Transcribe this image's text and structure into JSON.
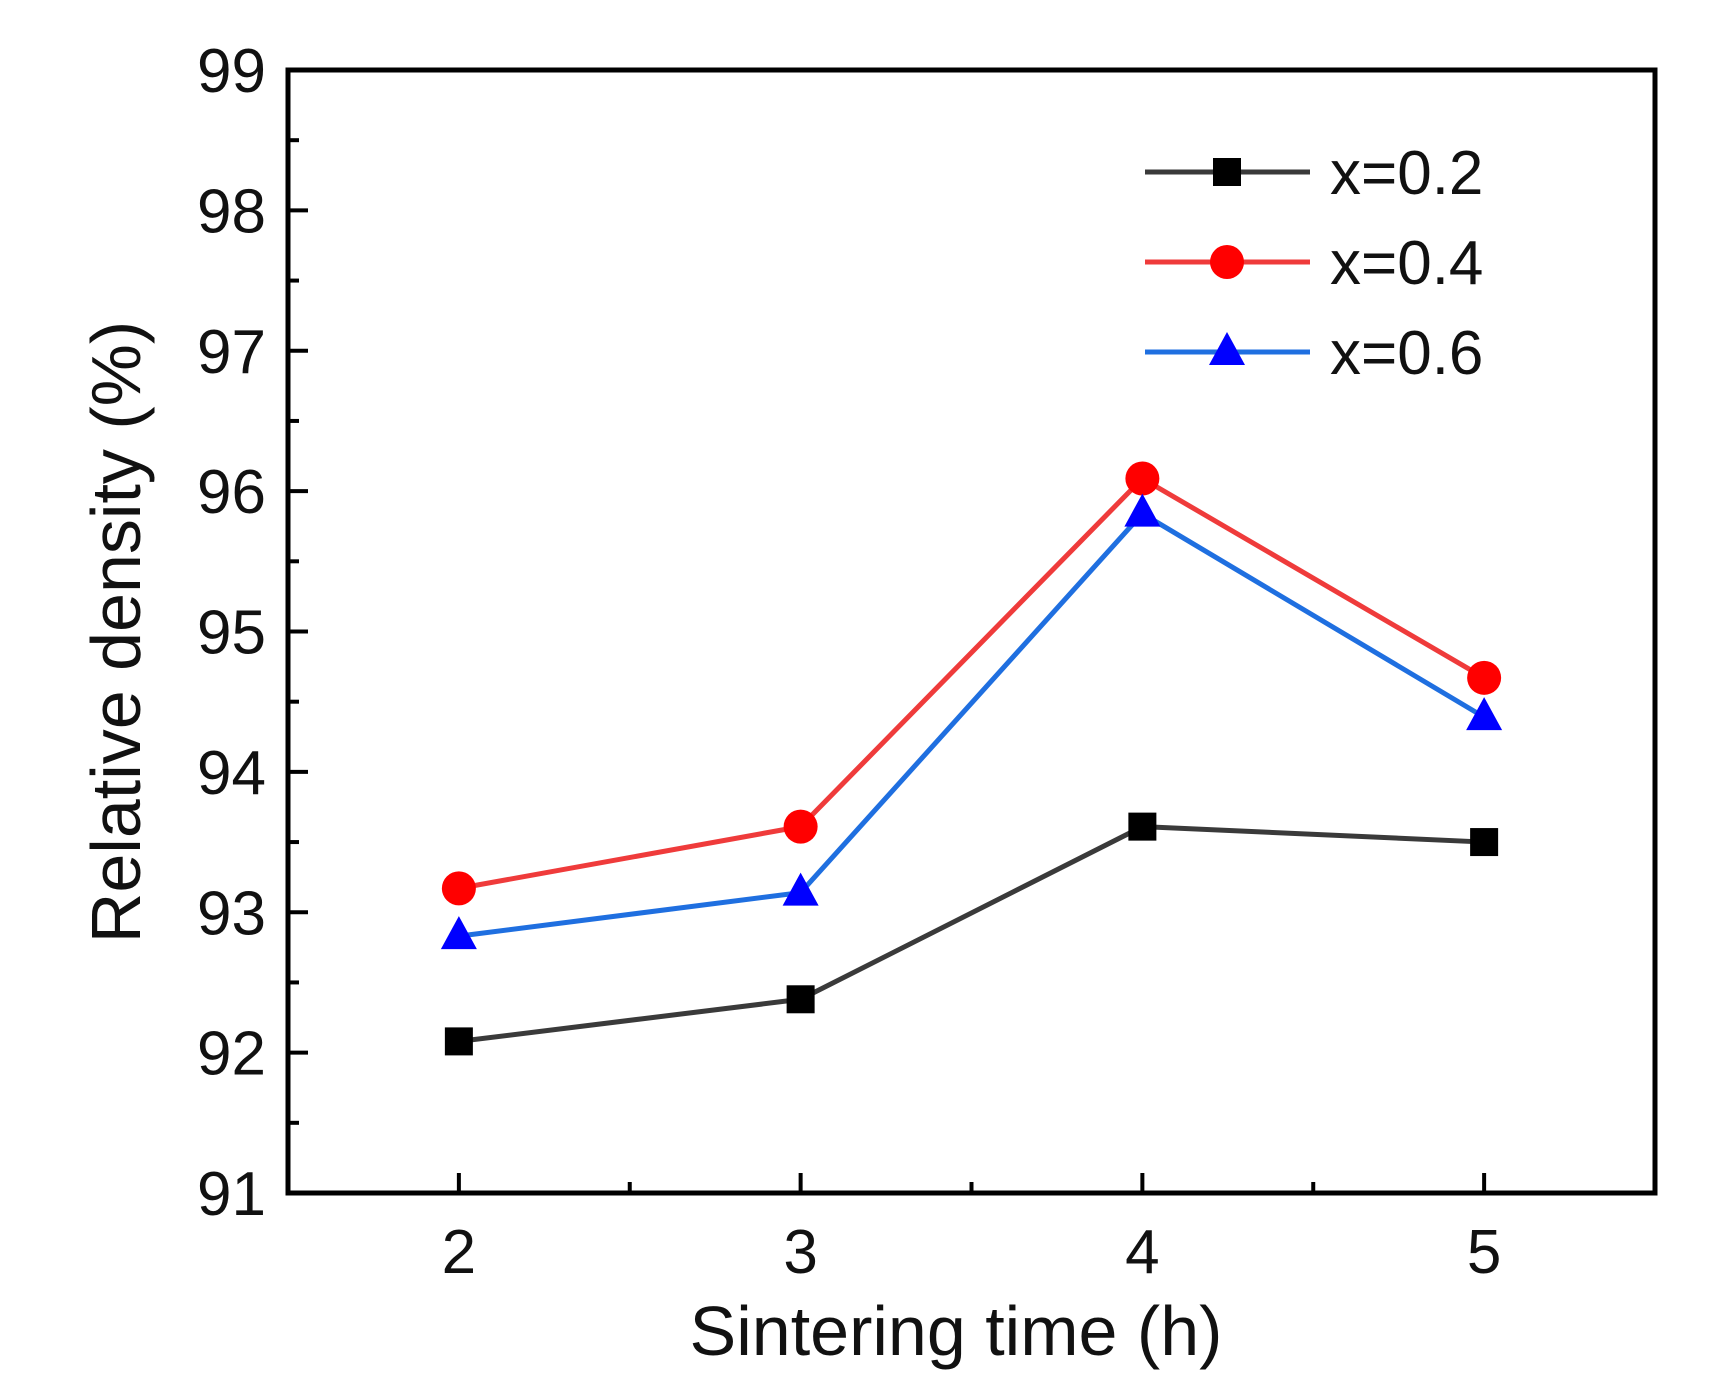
{
  "chart_data": {
    "type": "line",
    "title": "",
    "xlabel": "Sintering time (h)",
    "ylabel": "Relative density (%)",
    "x": [
      2,
      3,
      4,
      5
    ],
    "xlim": [
      1.5,
      5.5
    ],
    "ylim": [
      91,
      99
    ],
    "xticks": [
      2,
      3,
      4,
      5
    ],
    "xtick_labels": [
      "2",
      "3",
      "4",
      "5"
    ],
    "yticks": [
      91,
      92,
      93,
      94,
      95,
      96,
      97,
      98,
      99
    ],
    "ytick_labels": [
      "91",
      "92",
      "93",
      "94",
      "95",
      "96",
      "97",
      "98",
      "99"
    ],
    "grid": false,
    "legend_position": "top-right",
    "series": [
      {
        "name": "x=0.2",
        "values": [
          92.08,
          92.38,
          93.61,
          93.5
        ],
        "color": "#3a3a3a",
        "marker": "square",
        "marker_color": "#000000"
      },
      {
        "name": "x=0.4",
        "values": [
          93.17,
          93.61,
          96.09,
          94.67
        ],
        "color": "#ef3b3b",
        "marker": "circle",
        "marker_color": "#ff0000"
      },
      {
        "name": "x=0.6",
        "values": [
          92.83,
          93.14,
          95.84,
          94.39
        ],
        "color": "#1f6fe0",
        "marker": "triangle",
        "marker_color": "#0000ff"
      }
    ]
  }
}
